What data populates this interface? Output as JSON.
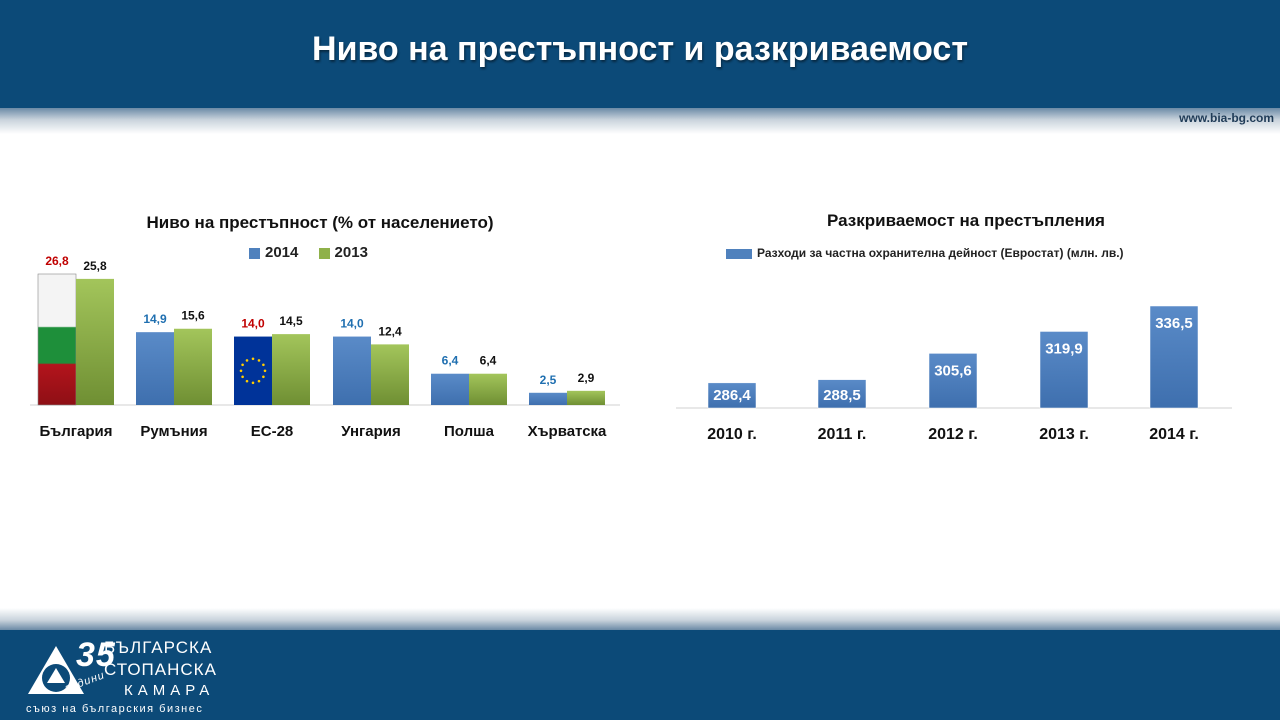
{
  "page": {
    "title": "Ниво на престъпност и разкриваемост",
    "url": "www.bia-bg.com"
  },
  "logo": {
    "number": "35",
    "years": "години",
    "line1": "БЪЛГАРСКА",
    "line2": "СТОПАНСКА",
    "line3": "КАМАРА",
    "tagline": "съюз на българския бизнес"
  },
  "colors": {
    "header": "#0c4a78",
    "series_2014": "#4f81bd",
    "series_2013": "#8fb14a",
    "label_red": "#c00000",
    "label_blue": "#1f6fb0"
  },
  "chart_data": [
    {
      "type": "bar",
      "title": "Ниво на престъпност (% от населението)",
      "categories": [
        "България",
        "Румъния",
        "ЕС-28",
        "Унгария",
        "Полша",
        "Хърватска"
      ],
      "series": [
        {
          "name": "2014",
          "values": [
            26.8,
            14.9,
            14.0,
            14.0,
            6.4,
            2.5
          ],
          "labels": [
            "26,8",
            "14,9",
            "14,0",
            "14,0",
            "6,4",
            "2,5"
          ],
          "label_colors": [
            "#c00000",
            "#1f6fb0",
            "#c00000",
            "#1f6fb0",
            "#1f6fb0",
            "#1f6fb0"
          ]
        },
        {
          "name": "2013",
          "values": [
            25.8,
            15.6,
            14.5,
            12.4,
            6.4,
            2.9
          ],
          "labels": [
            "25,8",
            "15,6",
            "14,5",
            "12,4",
            "6,4",
            "2,9"
          ]
        }
      ],
      "legend": "top",
      "special_fills": {
        "България": "bulgarian-flag",
        "ЕС-28": "eu-flag"
      }
    },
    {
      "type": "bar",
      "title": "Разкриваемост на престъпления",
      "categories": [
        "2010 г.",
        "2011 г.",
        "2012 г.",
        "2013 г.",
        "2014 г."
      ],
      "series": [
        {
          "name": "Разходи за частна охранителна дейност (Евростат) (млн. лв.)",
          "values": [
            286.4,
            288.5,
            305.6,
            319.9,
            336.5
          ],
          "labels": [
            "286,4",
            "288,5",
            "305,6",
            "319,9",
            "336,5"
          ]
        }
      ],
      "legend": "top"
    }
  ]
}
